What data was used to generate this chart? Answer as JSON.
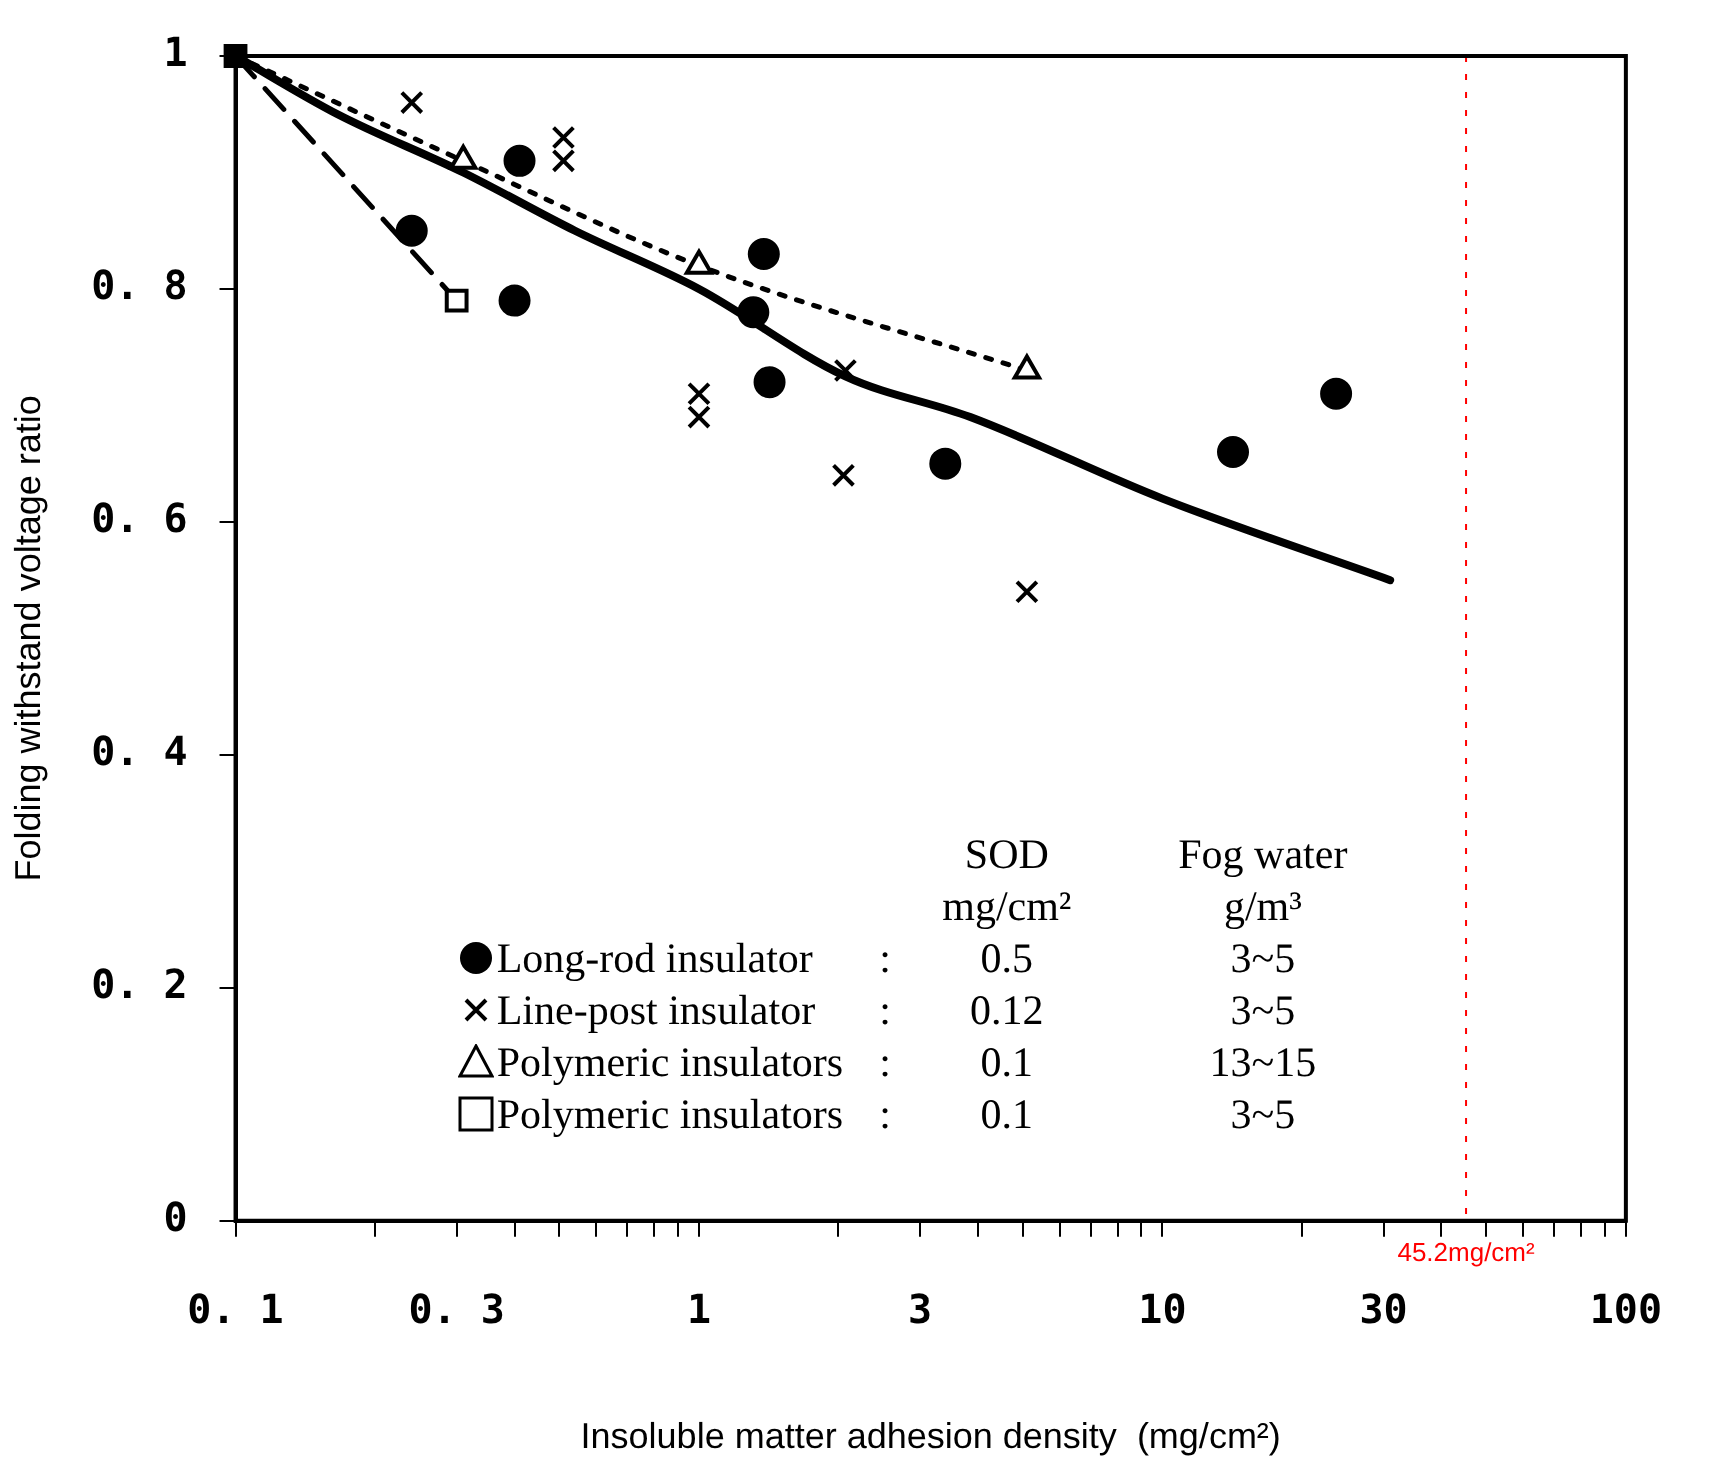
{
  "chart_data": {
    "type": "scatter",
    "xlabel": "Insoluble matter adhesion density  (mg/cm²)",
    "ylabel": "Folding withstand voltage ratio",
    "log": "x",
    "xlim": [
      0.1,
      100
    ],
    "xticks": [
      {
        "value": 0.1,
        "label": "0. 1"
      },
      {
        "value": 0.2,
        "label": null
      },
      {
        "value": 0.3,
        "label": "0. 3"
      },
      {
        "value": 0.4,
        "label": null
      },
      {
        "value": 0.5,
        "label": null
      },
      {
        "value": 0.6,
        "label": null
      },
      {
        "value": 0.7,
        "label": null
      },
      {
        "value": 0.8,
        "label": null
      },
      {
        "value": 0.9,
        "label": null
      },
      1,
      {
        "value": 2,
        "label": null
      },
      3,
      {
        "value": 4,
        "label": null
      },
      {
        "value": 5,
        "label": null
      },
      {
        "value": 6,
        "label": null
      },
      {
        "value": 7,
        "label": null
      },
      {
        "value": 8,
        "label": null
      },
      {
        "value": 9,
        "label": null
      },
      10,
      {
        "value": 20,
        "label": null
      },
      30,
      {
        "value": 40,
        "label": null
      },
      {
        "value": 50,
        "label": null
      },
      {
        "value": 60,
        "label": null
      },
      {
        "value": 70,
        "label": null
      },
      {
        "value": 80,
        "label": null
      },
      {
        "value": 90,
        "label": null
      },
      100
    ],
    "ylim": [
      0,
      1
    ],
    "yticks": [
      0,
      {
        "value": 0.2,
        "label": "0. 2"
      },
      {
        "value": 0.4,
        "label": "0. 4"
      },
      {
        "value": 0.6,
        "label": "0. 6"
      },
      {
        "value": 0.8,
        "label": "0. 8"
      },
      1
    ],
    "grid": false,
    "legend": "bottom",
    "series": [
      {
        "name": "Long-rod insulator",
        "color": "#000000",
        "marker": "circle",
        "x": [
          0.24,
          0.41,
          0.4,
          1.38,
          1.31,
          1.42,
          3.4,
          14.2,
          23.7
        ],
        "values": [
          0.85,
          0.91,
          0.79,
          0.83,
          0.78,
          0.72,
          0.65,
          0.66,
          0.71
        ]
      },
      {
        "name": "Line-post insulator",
        "color": "#000000",
        "marker": "cross",
        "x": [
          0.24,
          0.51,
          0.51,
          1.0,
          1.0,
          2.07,
          2.05,
          5.1
        ],
        "values": [
          0.96,
          0.93,
          0.91,
          0.71,
          0.69,
          0.73,
          0.64,
          0.54
        ]
      },
      {
        "name": "Polymeric insulators",
        "color": "#000000",
        "marker": "triangle",
        "x": [
          0.31,
          1.0,
          5.1
        ],
        "values": [
          0.91,
          0.82,
          0.73
        ]
      },
      {
        "name": "Polymeric insulators",
        "color": "#000000",
        "marker": "square",
        "x": [
          0.3
        ],
        "values": [
          0.79
        ]
      },
      {
        "type": "scatter",
        "color": "#000000",
        "marker": "square",
        "x": [
          0.1
        ],
        "values": [
          1
        ]
      },
      {
        "type": "line",
        "color": "#000000",
        "line_style": "solid",
        "x": [
          0.1,
          0.166,
          0.31,
          0.54,
          1,
          2.07,
          3.85,
          10,
          31
        ],
        "values": [
          1,
          0.95,
          0.9,
          0.85,
          0.8,
          0.725,
          0.69,
          0.62,
          0.55
        ]
      },
      {
        "type": "line",
        "color": "#000000",
        "line_style": "dotted",
        "x": [
          0.1,
          0.31,
          1.0,
          5.1
        ],
        "values": [
          1,
          0.91,
          0.82,
          0.73
        ]
      },
      {
        "type": "line",
        "color": "#000000",
        "line_style": "dashed",
        "x": [
          0.1,
          0.3
        ],
        "values": [
          1,
          0.79
        ]
      }
    ],
    "ref_lines": [
      {
        "axis": "x",
        "value": 45.2,
        "label": "45.2mg/cm²",
        "color": "#ff0000",
        "line_style": "dotted"
      }
    ],
    "annotations": [
      "SOD",
      "mg/cm²",
      "Fog water",
      "g/m³",
      ":",
      "0.5",
      "3~5",
      ":",
      "0.12",
      "3~5",
      ":",
      "0.1",
      "13~15",
      ":",
      "0.1",
      "3~5"
    ]
  }
}
